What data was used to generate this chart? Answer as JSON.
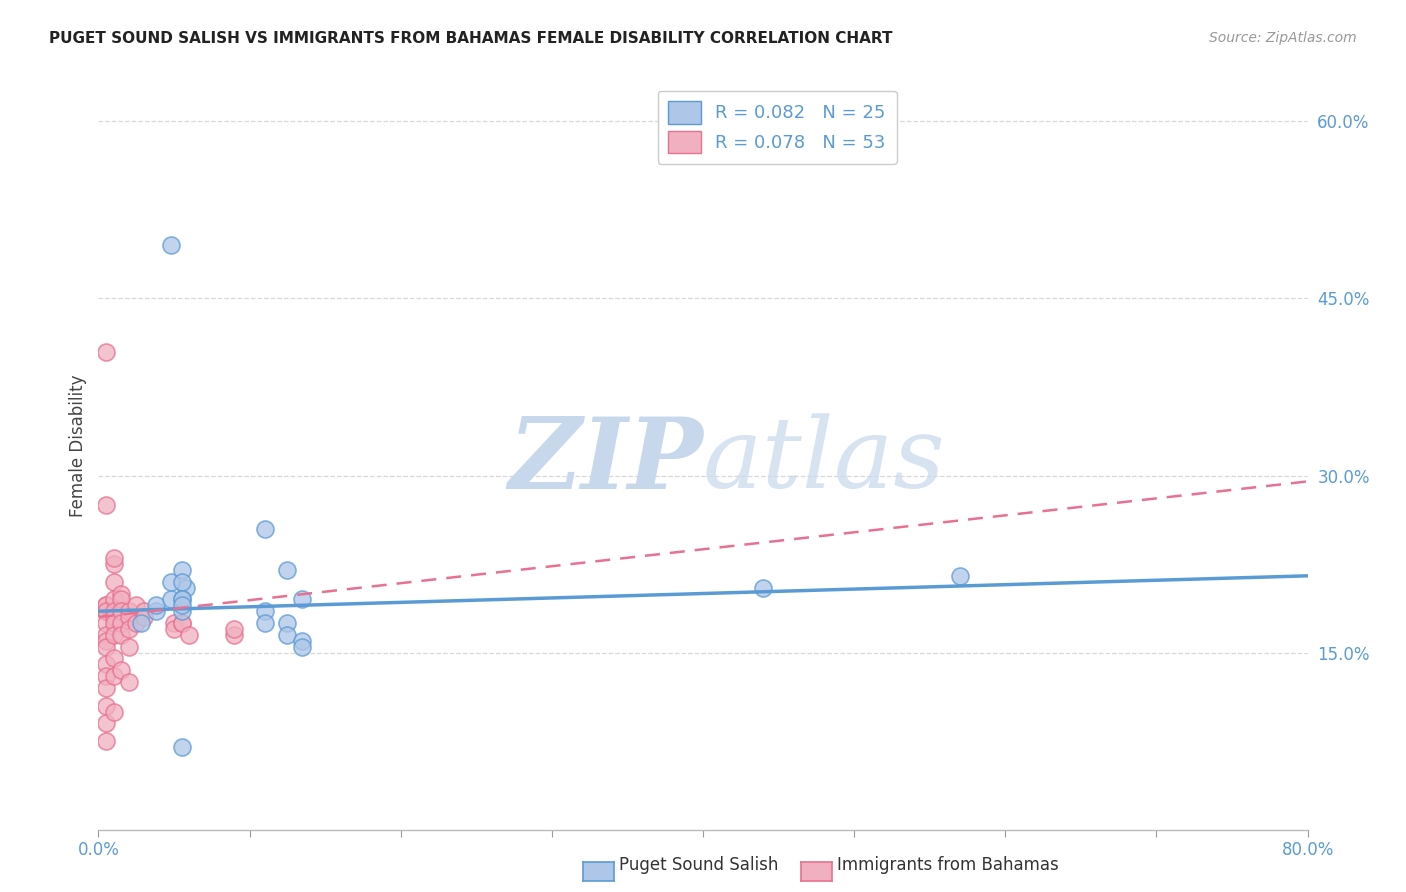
{
  "title": "PUGET SOUND SALISH VS IMMIGRANTS FROM BAHAMAS FEMALE DISABILITY CORRELATION CHART",
  "source": "Source: ZipAtlas.com",
  "ylabel": "Female Disability",
  "xlim": [
    0,
    0.8
  ],
  "ylim": [
    0,
    0.65
  ],
  "xtick_positions": [
    0.0,
    0.1,
    0.2,
    0.3,
    0.4,
    0.5,
    0.6,
    0.7,
    0.8
  ],
  "xtick_labels": [
    "0.0%",
    "",
    "",
    "",
    "",
    "",
    "",
    "",
    "80.0%"
  ],
  "ytick_right_positions": [
    0.15,
    0.3,
    0.45,
    0.6
  ],
  "ytick_right_labels": [
    "15.0%",
    "30.0%",
    "45.0%",
    "60.0%"
  ],
  "blue_R": "R = 0.082",
  "blue_N": "N = 25",
  "pink_R": "R = 0.078",
  "pink_N": "N = 53",
  "blue_scatter_x": [
    0.048,
    0.028,
    0.058,
    0.048,
    0.038,
    0.038,
    0.048,
    0.055,
    0.055,
    0.11,
    0.11,
    0.11,
    0.125,
    0.125,
    0.125,
    0.135,
    0.135,
    0.135,
    0.44,
    0.57,
    0.055,
    0.055,
    0.055,
    0.055,
    0.055
  ],
  "blue_scatter_y": [
    0.495,
    0.175,
    0.205,
    0.21,
    0.185,
    0.19,
    0.195,
    0.22,
    0.185,
    0.255,
    0.185,
    0.175,
    0.175,
    0.165,
    0.22,
    0.16,
    0.155,
    0.195,
    0.205,
    0.215,
    0.21,
    0.195,
    0.195,
    0.07,
    0.19
  ],
  "pink_scatter_x": [
    0.005,
    0.005,
    0.005,
    0.005,
    0.005,
    0.005,
    0.005,
    0.005,
    0.005,
    0.005,
    0.005,
    0.005,
    0.005,
    0.005,
    0.005,
    0.005,
    0.005,
    0.005,
    0.005,
    0.005,
    0.01,
    0.01,
    0.01,
    0.01,
    0.01,
    0.01,
    0.01,
    0.01,
    0.01,
    0.01,
    0.01,
    0.015,
    0.015,
    0.015,
    0.015,
    0.015,
    0.015,
    0.02,
    0.02,
    0.02,
    0.02,
    0.02,
    0.025,
    0.025,
    0.03,
    0.03,
    0.05,
    0.05,
    0.055,
    0.055,
    0.06,
    0.09,
    0.09
  ],
  "pink_scatter_y": [
    0.405,
    0.185,
    0.185,
    0.185,
    0.185,
    0.185,
    0.19,
    0.19,
    0.185,
    0.175,
    0.165,
    0.16,
    0.155,
    0.14,
    0.13,
    0.12,
    0.105,
    0.09,
    0.075,
    0.275,
    0.225,
    0.23,
    0.21,
    0.195,
    0.185,
    0.18,
    0.175,
    0.165,
    0.145,
    0.13,
    0.1,
    0.2,
    0.195,
    0.185,
    0.175,
    0.165,
    0.135,
    0.185,
    0.18,
    0.17,
    0.155,
    0.125,
    0.19,
    0.175,
    0.185,
    0.18,
    0.175,
    0.17,
    0.175,
    0.175,
    0.165,
    0.165,
    0.17
  ],
  "blue_line_x": [
    0.0,
    0.8
  ],
  "blue_line_y": [
    0.185,
    0.215
  ],
  "pink_line_x": [
    0.0,
    0.8
  ],
  "pink_line_y": [
    0.18,
    0.295
  ],
  "blue_color": "#5b9bd5",
  "pink_color": "#e87090",
  "blue_fill": "#aec6e8",
  "pink_fill": "#f0b0c0",
  "watermark_zip": "ZIP",
  "watermark_atlas": "atlas",
  "background_color": "#ffffff",
  "grid_color": "#d8d8d8",
  "legend_label_blue": "Puget Sound Salish",
  "legend_label_pink": "Immigrants from Bahamas"
}
